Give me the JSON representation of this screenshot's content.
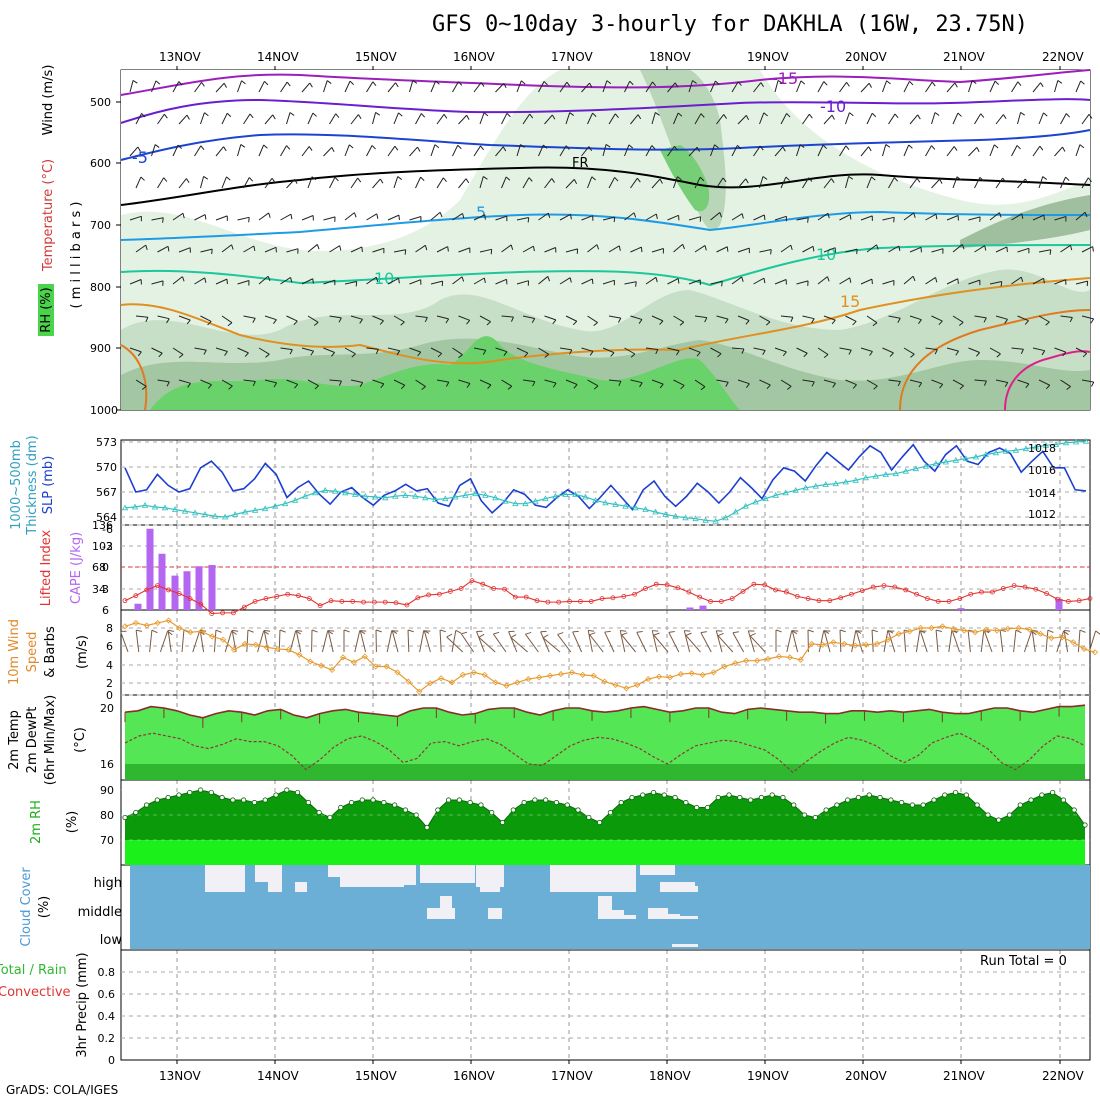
{
  "title": "GFS 0~10day 3-hourly for DAKHLA (16W, 23.75N)",
  "footer": "GrADS: COLA/IGES",
  "dates": [
    "13NOV",
    "14NOV",
    "15NOV",
    "16NOV",
    "17NOV",
    "18NOV",
    "19NOV",
    "20NOV",
    "21NOV",
    "22NOV"
  ],
  "colors": {
    "rh_green": "#4fd34f",
    "slp": "#1c3fd0",
    "thickness": "#33c0c0",
    "cape": "#b566f0",
    "lifted": "#e33333",
    "wind_speed": "#e79b2e",
    "temp_fill": "#55e655",
    "temp_dark": "#2fb82f",
    "rh2m_dark": "#0a9a0a",
    "rh2m_light": "#1bf01b",
    "cloud": "#6baed6",
    "cloud_gap": "#f2f0f7"
  },
  "panels": {
    "upper": {
      "ylabel_rh": "RH (%)",
      "ylabel_temp": "Temperature (°C)",
      "ylabel_wind": "Wind (m/s)",
      "ylabel_p": "( m i l l i b a r s )",
      "yticks": [
        "500",
        "600",
        "700",
        "800",
        "900",
        "1000"
      ],
      "contour_labels": [
        "-15",
        "-10",
        "-5",
        "FR",
        "5",
        "10",
        "15",
        "10"
      ]
    },
    "thick": {
      "ylabel_a": "1000~500mb",
      "ylabel_b": "Thickness (dm)",
      "ylabel_c": "SLP (mb)",
      "yticks_left": [
        "573",
        "570",
        "567",
        "564"
      ],
      "yticks_right": [
        "1018",
        "1016",
        "1014",
        "1012"
      ]
    },
    "cape": {
      "ylabel_a": "Lifted Index",
      "ylabel_b": "CAPE (J/kg)",
      "yticks_left": [
        "-6",
        "-3",
        "0",
        "3",
        "6"
      ],
      "yticks_right": [
        "136",
        "102",
        "68",
        "34"
      ]
    },
    "wind": {
      "ylabel_a": "10m Wind",
      "ylabel_b": "Speed",
      "ylabel_c": "& Barbs",
      "ylabel_d": "(m/s)",
      "yticks": [
        "8",
        "6",
        "4",
        "2",
        "0"
      ]
    },
    "temp": {
      "ylabel_a": "2m Temp",
      "ylabel_b": "2m DewPt",
      "ylabel_c": "(6hr Min/Max)",
      "ylabel_d": "(°C)",
      "yticks": [
        "20",
        "16"
      ]
    },
    "rh": {
      "ylabel_a": "2m RH",
      "ylabel_b": "(%)",
      "yticks": [
        "90",
        "80",
        "70"
      ]
    },
    "cloud": {
      "ylabel_a": "Cloud Cover",
      "ylabel_b": "(%)",
      "levels": [
        "high",
        "middle",
        "low"
      ]
    },
    "precip": {
      "ylabel_a": "Total / Rain",
      "ylabel_b": "Convective",
      "ylabel_c": "3hr Precip (mm)",
      "yticks": [
        "0.8",
        "0.6",
        "0.4",
        "0.2",
        "0"
      ],
      "run_total": "Run Total = 0"
    }
  },
  "chart_data": [
    {
      "type": "line",
      "title": "1000~500mb Thickness / SLP",
      "series": [
        {
          "name": "SLP (mb)",
          "values": [
            1016.2,
            1014.0,
            1014.2,
            1015.6,
            1014.6,
            1014.0,
            1014.3,
            1016.2,
            1016.8,
            1015.8,
            1014.1,
            1014.3,
            1015.2,
            1016.6,
            1015.6,
            1013.5,
            1014.4,
            1015.0,
            1013.8,
            1012.9,
            1014.0,
            1014.4,
            1013.5,
            1012.8,
            1013.7,
            1014.1,
            1014.7,
            1014.1,
            1014.3,
            1013.0,
            1012.7,
            1014.6,
            1015.2,
            1013.2,
            1012.1,
            1013.0,
            1014.2,
            1013.8,
            1012.8,
            1012.6,
            1013.5,
            1014.2,
            1013.6,
            1012.5,
            1013.5,
            1014.6,
            1013.5,
            1012.4,
            1014.2,
            1015.0,
            1013.6,
            1012.7,
            1013.6,
            1014.8,
            1014.0,
            1013.0,
            1014.0,
            1015.3,
            1014.4,
            1013.4,
            1015.1,
            1016.2,
            1015.9,
            1015.0,
            1016.4,
            1017.6,
            1016.8,
            1016.0,
            1017.2,
            1018.2,
            1017.6,
            1016.0,
            1017.2,
            1018.3,
            1016.8,
            1015.9,
            1017.4,
            1018.2,
            1016.8,
            1016.5,
            1017.6,
            1018.0,
            1017.5,
            1015.8,
            1016.8,
            1017.7,
            1016.2,
            1016.2,
            1014.2,
            1014.1
          ]
        },
        {
          "name": "Thickness (dm)",
          "values": [
            565.1,
            565.2,
            565.4,
            565.2,
            565.1,
            564.9,
            564.7,
            564.5,
            564.3,
            564.1,
            564.0,
            564.3,
            564.6,
            564.8,
            565.0,
            565.3,
            565.6,
            566.0,
            566.5,
            566.9,
            567.2,
            567.1,
            566.9,
            566.7,
            566.5,
            566.4,
            566.3,
            566.5,
            566.6,
            566.5,
            566.3,
            566.1,
            566.2,
            566.4,
            566.6,
            566.8,
            566.6,
            566.3,
            565.9,
            565.6,
            565.6,
            565.9,
            566.2,
            566.5,
            566.7,
            566.7,
            566.4,
            566.0,
            565.7,
            565.5,
            565.3,
            565.1,
            564.9,
            564.6,
            564.3,
            564.1,
            563.9,
            563.8,
            563.6,
            563.5,
            563.9,
            564.6,
            565.3,
            565.8,
            566.2,
            566.6,
            566.9,
            567.2,
            567.5,
            567.7,
            567.9,
            568.0,
            568.2,
            568.4,
            568.7,
            568.9,
            569.1,
            569.2,
            569.5,
            569.8,
            570.1,
            570.4,
            570.6,
            570.8,
            571.0,
            571.2,
            571.5,
            571.7,
            571.9,
            572.0,
            572.2,
            572.4,
            572.6,
            572.7,
            572.9,
            573.0,
            573.1
          ]
        }
      ]
    },
    {
      "type": "bar",
      "title": "CAPE (J/kg)",
      "categories": [
        "12NOV21Z",
        "13NOV00Z",
        "13NOV03Z",
        "13NOV06Z",
        "13NOV09Z",
        "13NOV12Z",
        "13NOV15Z",
        "18NOV06Z",
        "18NOV09Z",
        "21NOV00Z",
        "22NOV00Z"
      ],
      "values": [
        10,
        130,
        90,
        55,
        62,
        70,
        72,
        4,
        7,
        3,
        18
      ],
      "ylim": [
        0,
        136
      ]
    },
    {
      "type": "line",
      "title": "Lifted Index",
      "ylim": [
        -6,
        6
      ],
      "values": [
        4.7,
        4.0,
        3.2,
        2.6,
        3.2,
        3.7,
        4.4,
        5.2,
        6.5,
        6.4,
        6.4,
        5.6,
        4.8,
        4.4,
        4.1,
        3.8,
        4.0,
        4.4,
        5.4,
        4.7,
        4.8,
        4.8,
        4.9,
        4.9,
        4.9,
        5.0,
        5.3,
        4.3,
        3.9,
        3.8,
        3.4,
        3.0,
        1.9,
        2.4,
        3.0,
        3.1,
        4.2,
        4.2,
        4.7,
        4.9,
        4.9,
        4.8,
        4.8,
        4.8,
        4.4,
        4.3,
        4.1,
        3.8,
        3.0,
        2.4,
        2.5,
        2.9,
        3.5,
        4.2,
        4.8,
        4.8,
        4.4,
        3.4,
        2.4,
        2.5,
        3.2,
        3.5,
        4.1,
        4.4,
        4.7,
        4.7,
        4.3,
        3.8,
        3.3,
        2.8,
        2.6,
        2.8,
        3.2,
        3.8,
        4.4,
        4.8,
        4.8,
        4.4,
        3.8,
        3.5,
        3.5,
        3.0,
        2.6,
        2.8,
        3.1,
        3.7,
        4.5,
        4.8,
        4.7,
        4.4
      ]
    },
    {
      "type": "line",
      "title": "10m Wind Speed (m/s)",
      "ylim": [
        0,
        9
      ],
      "values": [
        8.2,
        8.6,
        8.3,
        8.6,
        8.9,
        8.0,
        7.5,
        7.6,
        7.0,
        6.6,
        5.4,
        6.1,
        6.0,
        5.7,
        5.5,
        5.4,
        4.8,
        4.0,
        3.5,
        3.0,
        4.5,
        3.9,
        4.6,
        3.4,
        3.4,
        2.7,
        1.6,
        0.4,
        1.4,
        2.0,
        1.5,
        2.4,
        2.7,
        2.4,
        1.5,
        1.1,
        1.5,
        1.9,
        2.1,
        2.3,
        2.5,
        2.7,
        2.4,
        2.3,
        1.6,
        1.2,
        0.8,
        1.2,
        1.9,
        2.2,
        2.1,
        2.5,
        2.6,
        2.4,
        2.7,
        3.4,
        3.8,
        4.1,
        4.1,
        4.3,
        4.6,
        4.5,
        4.2,
        6.1,
        6.0,
        6.3,
        6.1,
        5.9,
        6.0,
        6.1,
        6.6,
        7.3,
        7.6,
        8.0,
        8.0,
        8.2,
        7.9,
        7.7,
        7.5,
        7.8,
        7.7,
        7.9,
        8.0,
        7.8,
        7.3,
        6.8,
        6.9,
        6.3,
        5.5,
        5.1
      ]
    },
    {
      "type": "area",
      "title": "2m Temp / 2m DewPt",
      "ylim": [
        15,
        20.5
      ],
      "series": [
        {
          "name": "2m Temp",
          "values": [
            19.7,
            19.8,
            20.1,
            20.0,
            19.8,
            19.5,
            19.3,
            19.6,
            19.8,
            19.7,
            19.5,
            19.8,
            19.9,
            19.5,
            19.3,
            19.6,
            19.8,
            19.9,
            19.7,
            19.6,
            19.5,
            19.4,
            19.8,
            20.0,
            20.0,
            19.7,
            19.5,
            19.6,
            19.9,
            20.0,
            20.0,
            19.7,
            19.5,
            19.8,
            20.0,
            20.0,
            19.8,
            19.7,
            19.8,
            20.0,
            20.1,
            19.9,
            19.7,
            19.8,
            20.0,
            20.0,
            19.7,
            19.6,
            19.9,
            20.0,
            19.9,
            19.8,
            19.7,
            19.7,
            19.6,
            19.6,
            19.8,
            19.8,
            19.7,
            19.8,
            19.7,
            19.8,
            19.9,
            19.7,
            19.6,
            19.6,
            19.8,
            20.0,
            20.0,
            19.8,
            19.7,
            19.9,
            20.1,
            20.1,
            20.2
          ]
        },
        {
          "name": "2m DewPt",
          "values": [
            17.5,
            18.0,
            18.2,
            18.0,
            17.8,
            17.3,
            17.1,
            17.4,
            17.8,
            17.6,
            17.6,
            17.3,
            16.6,
            15.6,
            16.3,
            17.2,
            17.8,
            18.0,
            17.6,
            17.0,
            16.1,
            16.4,
            17.5,
            17.6,
            17.3,
            17.6,
            17.8,
            17.4,
            16.7,
            16.0,
            15.9,
            16.6,
            17.3,
            17.7,
            17.9,
            17.8,
            17.5,
            17.1,
            16.5,
            16.0,
            16.7,
            17.3,
            17.5,
            17.7,
            17.6,
            17.3,
            17.0,
            16.3,
            15.4,
            16.2,
            16.9,
            17.5,
            17.9,
            17.7,
            17.3,
            16.6,
            16.1,
            16.6,
            17.5,
            17.9,
            18.2,
            17.7,
            17.1,
            16.1,
            15.6,
            16.3,
            17.3,
            18.0,
            17.8,
            17.3
          ]
        }
      ]
    },
    {
      "type": "area",
      "title": "2m RH (%)",
      "ylim": [
        62,
        92
      ],
      "values": [
        79,
        81,
        84,
        86,
        87,
        88,
        89,
        90,
        89,
        87,
        86,
        86,
        85,
        86,
        88,
        90,
        89,
        85,
        81,
        79,
        83,
        85,
        86,
        86,
        85,
        84,
        82,
        80,
        75,
        82,
        86,
        86,
        85,
        84,
        81,
        77,
        82,
        85,
        86,
        86,
        85,
        84,
        82,
        79,
        77,
        81,
        85,
        87,
        88,
        89,
        88,
        87,
        85,
        83,
        83,
        87,
        88,
        87,
        86,
        87,
        88,
        87,
        84,
        80,
        79,
        82,
        84,
        86,
        87,
        88,
        87,
        86,
        85,
        84,
        84,
        86,
        88,
        89,
        88,
        84,
        80,
        78,
        80,
        84,
        86,
        88,
        89,
        86,
        82,
        76
      ]
    },
    {
      "type": "heatmap",
      "title": "Cloud Cover (%)",
      "categories": [
        "high",
        "middle",
        "low"
      ],
      "values": [
        [
          0,
          0,
          0,
          1,
          1,
          1,
          1,
          1,
          0,
          1,
          1,
          0,
          0,
          0,
          1,
          1,
          1,
          1,
          1,
          0,
          0,
          0,
          1,
          1,
          0,
          0,
          0,
          0,
          0
        ],
        [
          0,
          0,
          0,
          0,
          0,
          0,
          0,
          0,
          0,
          0,
          0,
          0,
          0,
          0,
          0,
          0,
          0,
          0,
          0,
          0,
          0,
          0,
          1,
          1,
          0,
          0,
          0,
          0,
          0
        ],
        [
          0,
          0,
          0,
          0,
          0,
          0,
          0,
          0,
          0,
          0,
          0,
          0,
          0,
          0,
          0,
          0,
          0,
          0,
          0,
          0,
          0,
          0,
          0,
          0,
          0,
          0,
          0,
          0,
          0
        ]
      ]
    },
    {
      "type": "bar",
      "title": "3hr Precip (mm)",
      "ylim": [
        0,
        1
      ],
      "values": [
        0
      ]
    }
  ]
}
